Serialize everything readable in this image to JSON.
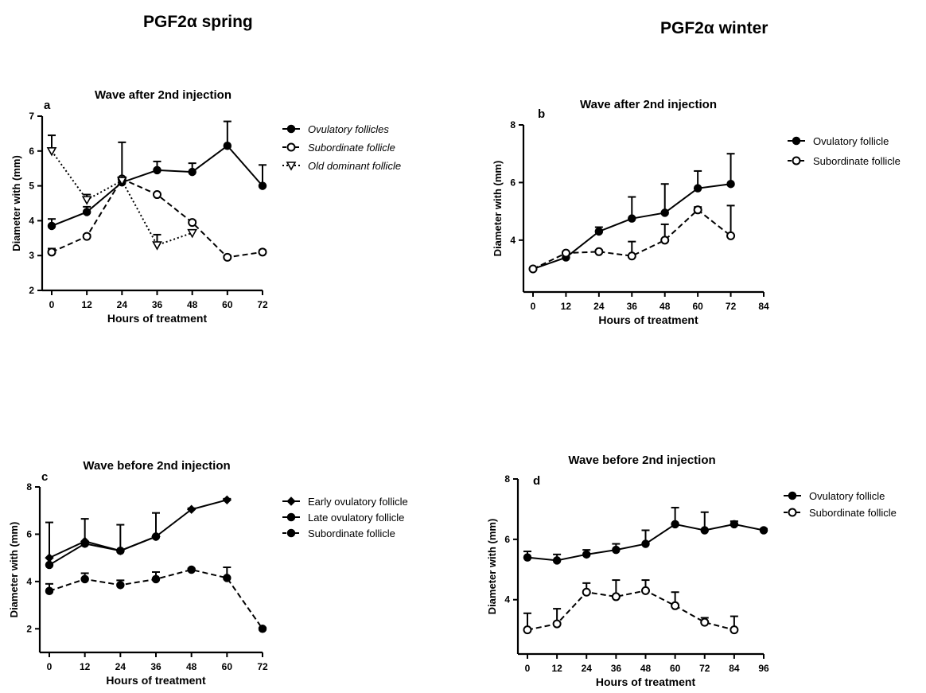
{
  "headings": {
    "left": "PGF2α spring",
    "right": "PGF2α winter"
  },
  "chart_data": [
    {
      "panel": "a",
      "type": "line",
      "title": "Wave after 2nd injection",
      "xlabel": "Hours of treatment",
      "ylabel": "Diameter with (mm)",
      "x_ticks": [
        0,
        12,
        24,
        36,
        48,
        60,
        72
      ],
      "y_ticks": [
        2,
        3,
        4,
        5,
        6,
        7
      ],
      "xlim": [
        0,
        72
      ],
      "ylim": [
        2,
        7
      ],
      "grid": false,
      "legend_position": "right",
      "series": [
        {
          "name": "Ovulatory follicles",
          "style": "solid",
          "marker": "filled-circle",
          "x": [
            0,
            12,
            24,
            36,
            48,
            60,
            72
          ],
          "y": [
            3.85,
            4.25,
            5.1,
            5.45,
            5.4,
            6.15,
            5.0
          ],
          "err": [
            0.2,
            0.15,
            0.15,
            0.25,
            0.25,
            0.7,
            0.6
          ]
        },
        {
          "name": "Subordinate follicle",
          "style": "dashed",
          "marker": "open-circle",
          "x": [
            0,
            12,
            24,
            36,
            48,
            60,
            72
          ],
          "y": [
            3.1,
            3.55,
            5.2,
            4.75,
            3.95,
            2.95,
            3.1
          ],
          "err": [
            0.1,
            0.05,
            0.0,
            0.0,
            0.05,
            0.05,
            0.05
          ]
        },
        {
          "name": "Old dominant follicle",
          "style": "dotted",
          "marker": "open-triangle-down",
          "x": [
            0,
            12,
            24,
            36,
            48
          ],
          "y": [
            6.0,
            4.6,
            5.15,
            3.3,
            3.65
          ],
          "err": [
            0.45,
            0.15,
            1.1,
            0.3,
            0.0
          ]
        }
      ]
    },
    {
      "panel": "b",
      "type": "line",
      "title": "Wave after 2nd injection",
      "xlabel": "Hours of treatment",
      "ylabel": "Diameter with (mm)",
      "x_ticks": [
        0,
        12,
        24,
        36,
        48,
        60,
        72,
        84
      ],
      "y_ticks": [
        4,
        6,
        8
      ],
      "xlim": [
        0,
        84
      ],
      "ylim": [
        2.2,
        8
      ],
      "grid": false,
      "legend_position": "right",
      "series": [
        {
          "name": "Ovulatory follicle",
          "style": "solid",
          "marker": "filled-circle",
          "x": [
            0,
            12,
            24,
            36,
            48,
            60,
            72
          ],
          "y": [
            3.0,
            3.4,
            4.3,
            4.75,
            4.95,
            5.8,
            5.95
          ],
          "err": [
            0.05,
            0.1,
            0.15,
            0.75,
            1.0,
            0.6,
            1.05
          ]
        },
        {
          "name": "Subordinate follicle",
          "style": "dashed",
          "marker": "open-circle",
          "x": [
            0,
            12,
            24,
            36,
            48,
            60,
            72
          ],
          "y": [
            3.0,
            3.55,
            3.6,
            3.45,
            4.0,
            5.05,
            4.15
          ],
          "err": [
            0.05,
            0.05,
            0.05,
            0.5,
            0.55,
            0.1,
            1.05
          ]
        }
      ]
    },
    {
      "panel": "c",
      "type": "line",
      "title": "Wave  before 2nd injection",
      "xlabel": "Hours of treatment",
      "ylabel": "Diameter with (mm)",
      "x_ticks": [
        0,
        12,
        24,
        36,
        48,
        60,
        72
      ],
      "y_ticks": [
        2,
        4,
        6,
        8
      ],
      "xlim": [
        0,
        72
      ],
      "ylim": [
        1,
        8
      ],
      "grid": false,
      "legend_position": "right",
      "series": [
        {
          "name": "Early ovulatory follicle",
          "style": "solid",
          "marker": "filled-diamond",
          "x": [
            0,
            12,
            24,
            36,
            48,
            60
          ],
          "y": [
            5.0,
            5.7,
            5.3,
            5.9,
            7.05,
            7.45
          ],
          "err": [
            1.5,
            0.95,
            1.1,
            1.0,
            0.05,
            0.05
          ]
        },
        {
          "name": "Late ovulatory follicle",
          "style": "solid",
          "marker": "filled-circle",
          "x": [
            0,
            12,
            24,
            36
          ],
          "y": [
            4.7,
            5.6,
            5.3,
            5.9
          ],
          "err": [
            0.0,
            0.0,
            0.0,
            0.0
          ]
        },
        {
          "name": "Subordinate follicle",
          "style": "dashed",
          "marker": "filled-circle",
          "x": [
            0,
            12,
            24,
            36,
            48,
            60,
            72
          ],
          "y": [
            3.6,
            4.1,
            3.85,
            4.1,
            4.5,
            4.15,
            2.0
          ],
          "err": [
            0.3,
            0.25,
            0.2,
            0.3,
            0.05,
            0.45,
            0.05
          ]
        }
      ]
    },
    {
      "panel": "d",
      "type": "line",
      "title": "Wave before 2nd injection",
      "xlabel": "Hours of treatment",
      "ylabel": "Diameter with (mm)",
      "x_ticks": [
        0,
        12,
        24,
        36,
        48,
        60,
        72,
        84,
        96
      ],
      "y_ticks": [
        4,
        6,
        8
      ],
      "xlim": [
        0,
        96
      ],
      "ylim": [
        2.2,
        8
      ],
      "grid": false,
      "legend_position": "right",
      "series": [
        {
          "name": "Ovulatory follicle",
          "style": "solid",
          "marker": "filled-circle",
          "x": [
            0,
            12,
            24,
            36,
            48,
            60,
            72,
            84,
            96
          ],
          "y": [
            5.4,
            5.3,
            5.5,
            5.65,
            5.85,
            6.5,
            6.3,
            6.5,
            6.3
          ],
          "err": [
            0.2,
            0.2,
            0.15,
            0.2,
            0.45,
            0.55,
            0.6,
            0.1,
            0.05
          ]
        },
        {
          "name": "Subordinate follicle",
          "style": "dashed",
          "marker": "open-circle",
          "x": [
            0,
            12,
            24,
            36,
            48,
            60,
            72,
            84
          ],
          "y": [
            3.0,
            3.2,
            4.25,
            4.1,
            4.3,
            3.8,
            3.25,
            3.0
          ],
          "err": [
            0.55,
            0.5,
            0.3,
            0.55,
            0.35,
            0.45,
            0.15,
            0.45
          ]
        }
      ]
    }
  ]
}
